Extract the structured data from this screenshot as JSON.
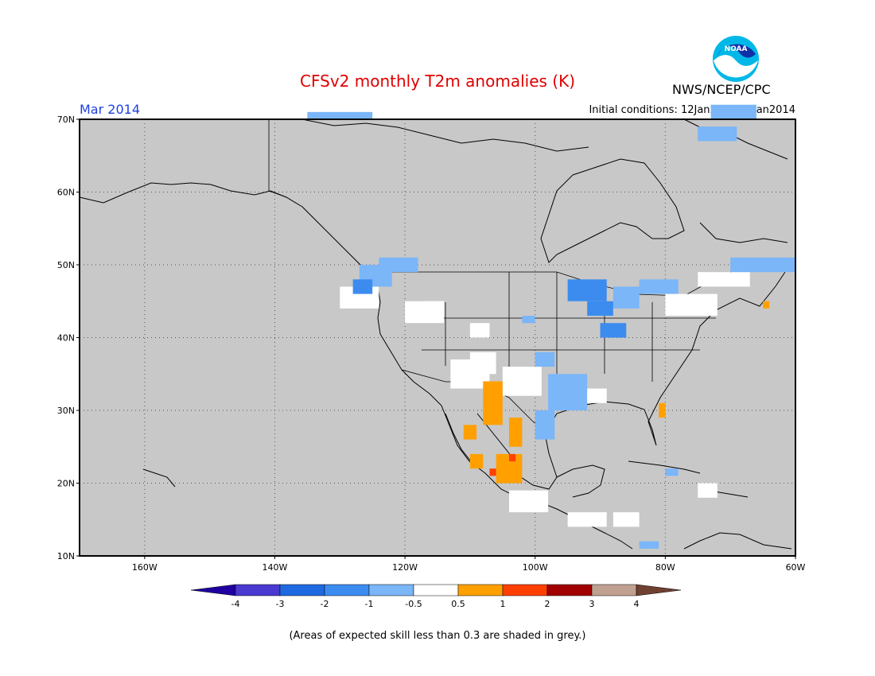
{
  "title": "CFSv2 monthly T2m anomalies (K)",
  "period": "Mar 2014",
  "initial_conditions": "Initial conditions: 12Jan2014-21Jan2014",
  "agency": "NWS/NCEP/CPC",
  "logo_text": "NOAA",
  "footnote": "(Areas of expected skill less than 0.3 are shaded in grey.)",
  "map": {
    "lat_labels": [
      "70N",
      "60N",
      "50N",
      "40N",
      "30N",
      "20N",
      "10N"
    ],
    "lat_values": [
      70,
      60,
      50,
      40,
      30,
      20,
      10
    ],
    "lon_labels": [
      "160W",
      "140W",
      "120W",
      "100W",
      "80W",
      "60W"
    ],
    "lon_values": [
      -160,
      -140,
      -120,
      -100,
      -80,
      -60
    ],
    "lon_range": [
      -170,
      -60
    ],
    "lat_range": [
      10,
      70
    ],
    "background_color": "#c8c8c8"
  },
  "colorbar": {
    "labels": [
      "-4",
      "-3",
      "-2",
      "-1",
      "-0.5",
      "0.5",
      "1",
      "2",
      "3",
      "4"
    ],
    "colors": [
      "#2000a0",
      "#4a3ad0",
      "#1f6ae0",
      "#3c8cf0",
      "#7ab6f8",
      "#ffffff",
      "#ffa000",
      "#ff4000",
      "#a00000",
      "#c0a090",
      "#704030"
    ]
  }
}
